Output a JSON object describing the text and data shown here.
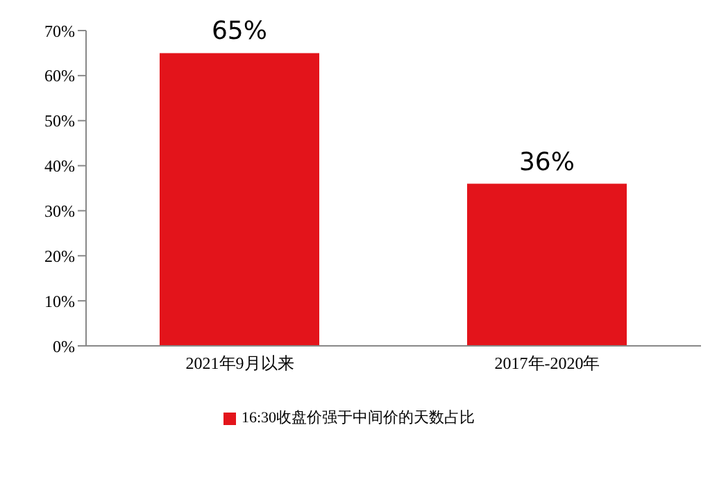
{
  "chart_data": {
    "type": "bar",
    "categories": [
      "2021年9月以来",
      "2017年-2020年"
    ],
    "series": [
      {
        "name": "16:30收盘价强于中间价的天数占比",
        "color": "#e3141b",
        "values": [
          65,
          36
        ],
        "value_labels": [
          "65%",
          "36%"
        ]
      }
    ],
    "ylim": [
      0,
      70
    ],
    "yticks": [
      {
        "value": 0,
        "label": "0%"
      },
      {
        "value": 10,
        "label": "10%"
      },
      {
        "value": 20,
        "label": "20%"
      },
      {
        "value": 30,
        "label": "30%"
      },
      {
        "value": 40,
        "label": "40%"
      },
      {
        "value": 50,
        "label": "50%"
      },
      {
        "value": 60,
        "label": "60%"
      },
      {
        "value": 70,
        "label": "70%"
      }
    ],
    "grid": false,
    "legend": "bottom"
  }
}
